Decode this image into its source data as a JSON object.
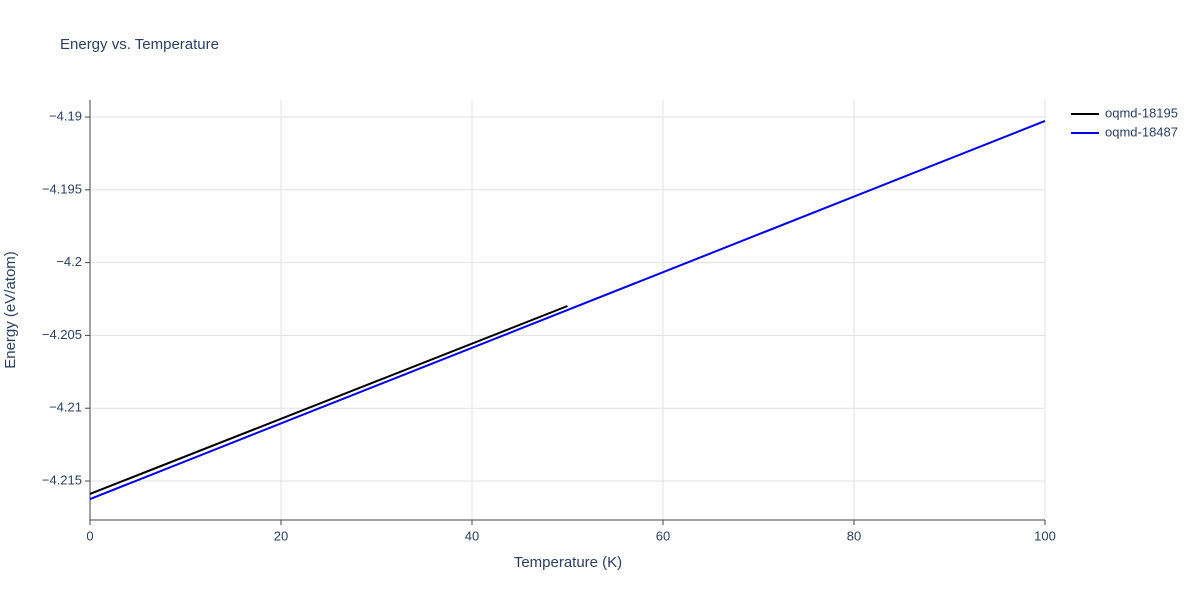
{
  "chart_data": {
    "type": "line",
    "title": "Energy vs. Temperature",
    "x_label": "Temperature (K)",
    "y_label": "Energy (eV/atom)",
    "xlim": [
      0,
      100
    ],
    "xticks": [
      0,
      20,
      40,
      60,
      80,
      100
    ],
    "ylim": [
      -4.21768,
      -4.18883
    ],
    "yticks": [
      {
        "value": -4.215,
        "label": "−4.215"
      },
      {
        "value": -4.21,
        "label": "−4.21"
      },
      {
        "value": -4.205,
        "label": "−4.205"
      },
      {
        "value": -4.2,
        "label": "−4.2"
      },
      {
        "value": -4.195,
        "label": "−4.195"
      },
      {
        "value": -4.19,
        "label": "−4.19"
      }
    ],
    "grid": true,
    "legend": "right",
    "series": [
      {
        "name": "oqmd-18195",
        "color": "#000000",
        "x": [
          0,
          50
        ],
        "values": [
          -4.21589,
          -4.20298
        ]
      },
      {
        "name": "oqmd-18487",
        "color": "#0000ee",
        "x": [
          0,
          100
        ],
        "values": [
          -4.21624,
          -4.19027
        ]
      }
    ]
  }
}
